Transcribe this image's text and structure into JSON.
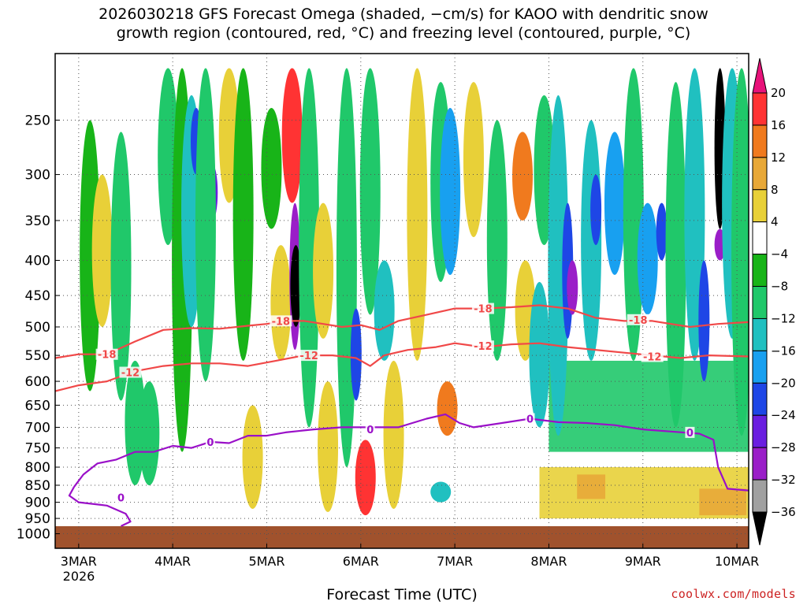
{
  "title_line1": "2026030218 GFS Forecast Omega (shaded, −cm/s) for KAOO with dendritic snow",
  "title_line2": "growth region (contoured, red, °C) and freezing level (contoured, purple, °C)",
  "credit": "coolwx.com/models",
  "chart_data": {
    "type": "heatmap",
    "title": "2026030218 GFS Forecast Omega (shaded, −cm/s) for KAOO with dendritic snow growth region (contoured, red, °C) and freezing level (contoured, purple, °C)",
    "xlabel": "Forecast Time (UTC)",
    "ylabel": "",
    "x_ticks": [
      "3MAR",
      "4MAR",
      "5MAR",
      "6MAR",
      "7MAR",
      "8MAR",
      "9MAR",
      "10MAR"
    ],
    "x_year": "2026",
    "x_range_days": [
      2.75,
      10.125
    ],
    "y_ticks": [
      250,
      300,
      350,
      400,
      450,
      500,
      550,
      600,
      650,
      700,
      750,
      800,
      850,
      900,
      950,
      1000
    ],
    "y_range_hPa": [
      200,
      1050
    ],
    "y_scale": "log-pressure (reversed)",
    "grid": true,
    "colorbar": {
      "labels": [
        "20",
        "16",
        "12",
        "8",
        "4",
        "−4",
        "−8",
        "−12",
        "−16",
        "−20",
        "−24",
        "−28",
        "−32",
        "−36"
      ],
      "colors": [
        "#e8137a",
        "#ff3333",
        "#f07a1e",
        "#e8a838",
        "#e8d038",
        "#ffffff",
        "#18b418",
        "#20c86a",
        "#20c0c0",
        "#18a0f0",
        "#1e46e6",
        "#6a1ee0",
        "#9a1ec8",
        "#a0a0a0",
        "#000000"
      ]
    },
    "omega_columns": [
      {
        "day": 3.12,
        "top": 250,
        "bottom": 620,
        "value": -6
      },
      {
        "day": 3.25,
        "top": 300,
        "bottom": 500,
        "value": 5
      },
      {
        "day": 3.45,
        "top": 260,
        "bottom": 640,
        "value": -8
      },
      {
        "day": 3.6,
        "top": 560,
        "bottom": 850,
        "value": -10
      },
      {
        "day": 3.75,
        "top": 600,
        "bottom": 850,
        "value": -9
      },
      {
        "day": 3.95,
        "top": 210,
        "bottom": 380,
        "value": -8
      },
      {
        "day": 4.1,
        "top": 210,
        "bottom": 760,
        "value": -7
      },
      {
        "day": 4.2,
        "top": 230,
        "bottom": 500,
        "value": -12
      },
      {
        "day": 4.25,
        "top": 240,
        "bottom": 300,
        "value": -22
      },
      {
        "day": 4.42,
        "top": 290,
        "bottom": 350,
        "value": -26
      },
      {
        "day": 4.35,
        "top": 210,
        "bottom": 600,
        "value": -8
      },
      {
        "day": 4.6,
        "top": 210,
        "bottom": 330,
        "value": 6
      },
      {
        "day": 4.75,
        "top": 210,
        "bottom": 560,
        "value": -7
      },
      {
        "day": 4.85,
        "top": 650,
        "bottom": 920,
        "value": 5
      },
      {
        "day": 5.05,
        "top": 240,
        "bottom": 360,
        "value": -6
      },
      {
        "day": 5.15,
        "top": 380,
        "bottom": 560,
        "value": 5
      },
      {
        "day": 5.27,
        "top": 210,
        "bottom": 330,
        "value": 18
      },
      {
        "day": 5.3,
        "top": 330,
        "bottom": 540,
        "value": -30
      },
      {
        "day": 5.31,
        "top": 380,
        "bottom": 500,
        "value": -36
      },
      {
        "day": 5.45,
        "top": 210,
        "bottom": 700,
        "value": -8
      },
      {
        "day": 5.6,
        "top": 330,
        "bottom": 520,
        "value": 5
      },
      {
        "day": 5.65,
        "top": 600,
        "bottom": 930,
        "value": 6
      },
      {
        "day": 5.85,
        "top": 210,
        "bottom": 800,
        "value": -10
      },
      {
        "day": 5.95,
        "top": 470,
        "bottom": 640,
        "value": -20
      },
      {
        "day": 6.1,
        "top": 210,
        "bottom": 480,
        "value": -8
      },
      {
        "day": 6.05,
        "top": 730,
        "bottom": 940,
        "value": 18
      },
      {
        "day": 6.25,
        "top": 400,
        "bottom": 560,
        "value": -14
      },
      {
        "day": 6.35,
        "top": 560,
        "bottom": 920,
        "value": 5
      },
      {
        "day": 6.6,
        "top": 210,
        "bottom": 560,
        "value": 4
      },
      {
        "day": 6.85,
        "top": 220,
        "bottom": 430,
        "value": -8
      },
      {
        "day": 6.95,
        "top": 240,
        "bottom": 420,
        "value": -18
      },
      {
        "day": 6.92,
        "top": 600,
        "bottom": 720,
        "value": 12
      },
      {
        "day": 6.85,
        "top": 840,
        "bottom": 900,
        "value": -12
      },
      {
        "day": 7.2,
        "top": 220,
        "bottom": 370,
        "value": 5
      },
      {
        "day": 7.45,
        "top": 250,
        "bottom": 560,
        "value": -8
      },
      {
        "day": 7.72,
        "top": 260,
        "bottom": 350,
        "value": 14
      },
      {
        "day": 7.75,
        "top": 400,
        "bottom": 560,
        "value": 5
      },
      {
        "day": 7.9,
        "top": 430,
        "bottom": 700,
        "value": -14
      },
      {
        "day": 7.95,
        "top": 230,
        "bottom": 380,
        "value": -10
      },
      {
        "day": 8.1,
        "top": 230,
        "bottom": 720,
        "value": -13
      },
      {
        "day": 8.2,
        "top": 330,
        "bottom": 520,
        "value": -20
      },
      {
        "day": 8.25,
        "top": 400,
        "bottom": 480,
        "value": -28
      },
      {
        "day": 8.45,
        "top": 250,
        "bottom": 560,
        "value": -15
      },
      {
        "day": 8.5,
        "top": 300,
        "bottom": 380,
        "value": -22
      },
      {
        "day": 8.7,
        "top": 260,
        "bottom": 420,
        "value": -16
      },
      {
        "day": 8.9,
        "top": 210,
        "bottom": 560,
        "value": -9
      },
      {
        "day": 9.05,
        "top": 330,
        "bottom": 480,
        "value": -18
      },
      {
        "day": 9.2,
        "top": 330,
        "bottom": 400,
        "value": -22
      },
      {
        "day": 9.35,
        "top": 220,
        "bottom": 700,
        "value": -10
      },
      {
        "day": 9.55,
        "top": 210,
        "bottom": 560,
        "value": -12
      },
      {
        "day": 9.65,
        "top": 400,
        "bottom": 600,
        "value": -20
      },
      {
        "day": 9.82,
        "top": 210,
        "bottom": 360,
        "value": -36
      },
      {
        "day": 9.82,
        "top": 360,
        "bottom": 400,
        "value": -30
      },
      {
        "day": 9.95,
        "top": 210,
        "bottom": 520,
        "value": -15
      },
      {
        "day": 10.05,
        "top": 210,
        "bottom": 720,
        "value": -9
      }
    ],
    "omega_patches": [
      {
        "day": 7.9,
        "day_end": 10.12,
        "top": 800,
        "bottom": 950,
        "value": 5
      },
      {
        "day": 8.3,
        "day_end": 8.6,
        "top": 820,
        "bottom": 890,
        "value": 11
      },
      {
        "day": 9.6,
        "day_end": 10.1,
        "top": 860,
        "bottom": 940,
        "value": 9
      },
      {
        "day": 8.0,
        "day_end": 10.12,
        "top": 560,
        "bottom": 760,
        "value": -9
      }
    ],
    "contours": [
      {
        "label": "-18",
        "color": "#f04848",
        "points": [
          [
            2.75,
            555
          ],
          [
            3.0,
            548
          ],
          [
            3.3,
            548
          ],
          [
            3.6,
            525
          ],
          [
            3.9,
            505
          ],
          [
            4.2,
            502
          ],
          [
            4.5,
            503
          ],
          [
            4.8,
            498
          ],
          [
            5.0,
            495
          ],
          [
            5.2,
            490
          ],
          [
            5.4,
            490
          ],
          [
            5.6,
            495
          ],
          [
            5.8,
            500
          ],
          [
            6.0,
            497
          ],
          [
            6.2,
            505
          ],
          [
            6.4,
            490
          ],
          [
            6.7,
            480
          ],
          [
            7.0,
            470
          ],
          [
            7.3,
            470
          ],
          [
            7.6,
            468
          ],
          [
            7.9,
            465
          ],
          [
            8.2,
            470
          ],
          [
            8.5,
            485
          ],
          [
            8.8,
            490
          ],
          [
            9.1,
            490
          ],
          [
            9.5,
            500
          ],
          [
            9.8,
            495
          ],
          [
            10.12,
            492
          ]
        ]
      },
      {
        "label": "-12",
        "color": "#f04848",
        "points": [
          [
            2.75,
            620
          ],
          [
            3.0,
            608
          ],
          [
            3.3,
            600
          ],
          [
            3.6,
            580
          ],
          [
            3.9,
            570
          ],
          [
            4.2,
            565
          ],
          [
            4.5,
            565
          ],
          [
            4.8,
            570
          ],
          [
            5.1,
            560
          ],
          [
            5.4,
            550
          ],
          [
            5.7,
            550
          ],
          [
            5.95,
            555
          ],
          [
            6.1,
            570
          ],
          [
            6.25,
            550
          ],
          [
            6.5,
            540
          ],
          [
            6.8,
            535
          ],
          [
            7.0,
            528
          ],
          [
            7.3,
            535
          ],
          [
            7.6,
            530
          ],
          [
            7.9,
            528
          ],
          [
            8.2,
            535
          ],
          [
            8.5,
            540
          ],
          [
            8.8,
            545
          ],
          [
            9.1,
            550
          ],
          [
            9.4,
            555
          ],
          [
            9.7,
            550
          ],
          [
            10.12,
            552
          ]
        ]
      },
      {
        "label": "0",
        "color": "#9a10c8",
        "points": [
          [
            2.95,
            855
          ],
          [
            3.05,
            820
          ],
          [
            3.2,
            790
          ],
          [
            3.4,
            780
          ],
          [
            3.6,
            760
          ],
          [
            3.8,
            760
          ],
          [
            4.0,
            745
          ],
          [
            4.2,
            750
          ],
          [
            4.4,
            735
          ],
          [
            4.6,
            738
          ],
          [
            4.8,
            720
          ],
          [
            5.0,
            720
          ],
          [
            5.2,
            712
          ],
          [
            5.5,
            705
          ],
          [
            5.8,
            700
          ],
          [
            6.1,
            700
          ],
          [
            6.4,
            700
          ],
          [
            6.7,
            680
          ],
          [
            6.9,
            670
          ],
          [
            7.05,
            690
          ],
          [
            7.2,
            700
          ],
          [
            7.5,
            690
          ],
          [
            7.8,
            680
          ],
          [
            8.1,
            688
          ],
          [
            8.4,
            690
          ],
          [
            8.7,
            695
          ],
          [
            9.0,
            705
          ],
          [
            9.3,
            710
          ],
          [
            9.6,
            715
          ],
          [
            9.75,
            730
          ],
          [
            9.8,
            800
          ],
          [
            9.9,
            860
          ],
          [
            10.12,
            865
          ]
        ]
      },
      {
        "label": "",
        "color": "#9a10c8",
        "points": [
          [
            2.95,
            855
          ],
          [
            2.9,
            880
          ],
          [
            3.0,
            900
          ],
          [
            3.3,
            910
          ],
          [
            3.5,
            935
          ],
          [
            3.55,
            960
          ],
          [
            3.45,
            975
          ]
        ]
      }
    ],
    "contour_labels": [
      {
        "text": "-18",
        "day": 3.3,
        "p": 548,
        "color": "#f04848"
      },
      {
        "text": "-18",
        "day": 5.15,
        "p": 490,
        "color": "#f04848"
      },
      {
        "text": "-18",
        "day": 7.3,
        "p": 470,
        "color": "#f04848"
      },
      {
        "text": "-18",
        "day": 8.95,
        "p": 488,
        "color": "#f04848"
      },
      {
        "text": "-12",
        "day": 3.55,
        "p": 582,
        "color": "#f04848"
      },
      {
        "text": "-12",
        "day": 5.45,
        "p": 550,
        "color": "#f04848"
      },
      {
        "text": "-12",
        "day": 7.3,
        "p": 533,
        "color": "#f04848"
      },
      {
        "text": "-12",
        "day": 9.1,
        "p": 552,
        "color": "#f04848"
      },
      {
        "text": "0",
        "day": 3.45,
        "p": 885,
        "color": "#9a10c8"
      },
      {
        "text": "0",
        "day": 4.4,
        "p": 735,
        "color": "#9a10c8"
      },
      {
        "text": "0",
        "day": 6.1,
        "p": 705,
        "color": "#9a10c8"
      },
      {
        "text": "0",
        "day": 7.8,
        "p": 680,
        "color": "#9a10c8"
      },
      {
        "text": "0",
        "day": 9.5,
        "p": 712,
        "color": "#9a10c8"
      }
    ],
    "terrain": {
      "color": "#a0522d",
      "top_hPa": 975
    }
  }
}
